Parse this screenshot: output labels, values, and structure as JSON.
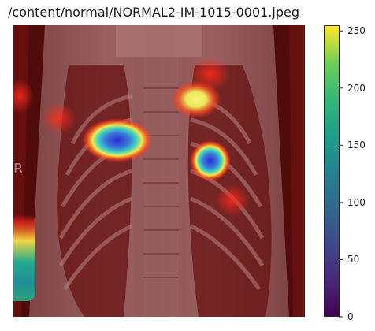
{
  "figure": {
    "title": "/content/normal/NORMAL2-IM-1015-0001.jpeg"
  },
  "image": {
    "description_icon": "chest-xray-heatmap-image",
    "colors": {
      "background": "#4a1010",
      "overlay": "#6b1d1d",
      "heat_red": "#e53935",
      "heat_yellow": "#fde725",
      "heat_blue": "#3b3bd6",
      "heat_teal": "#1fa187"
    }
  },
  "chart_data": {
    "type": "heatmap",
    "colormap": "viridis",
    "colorbar_ticks": [
      0,
      50,
      100,
      150,
      200,
      250
    ],
    "colorbar_tick_labels": [
      "0",
      "50",
      "100",
      "150",
      "200",
      "250"
    ],
    "vmin": 0,
    "vmax": 255
  }
}
